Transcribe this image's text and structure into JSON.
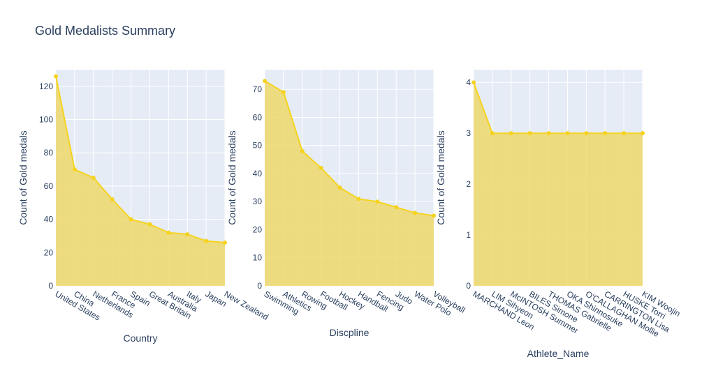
{
  "chart_title": "Gold Medalists Summary",
  "colors": {
    "plot_bg": "#e5ecf6",
    "grid": "#ffffff",
    "line": "#f5d31e",
    "fill": "#efd86b",
    "text": "#2a3f5f"
  },
  "chart_data": [
    {
      "type": "area",
      "title": "Gold Medalists Summary",
      "xlabel": "Country",
      "ylabel": "Count of Gold medals",
      "categories": [
        "United States",
        "China",
        "Netherlands",
        "France",
        "Spain",
        "Great Britain",
        "Australia",
        "Italy",
        "Japan",
        "New Zealand"
      ],
      "values": [
        126,
        70,
        65,
        52,
        40,
        37,
        32,
        31,
        27,
        26
      ],
      "ylim": [
        0,
        130
      ],
      "yticks": [
        0,
        20,
        40,
        60,
        80,
        100,
        120
      ],
      "grid": true
    },
    {
      "type": "area",
      "xlabel": "Discpline",
      "ylabel": "Count of Gold medals",
      "categories": [
        "Swimming",
        "Athletics",
        "Rowing",
        "Football",
        "Hockey",
        "Handball",
        "Fencing",
        "Judo",
        "Water Polo",
        "Volleyball"
      ],
      "values": [
        73,
        69,
        48,
        42,
        35,
        31,
        30,
        28,
        26,
        25
      ],
      "ylim": [
        0,
        77
      ],
      "yticks": [
        0,
        10,
        20,
        30,
        40,
        50,
        60,
        70
      ],
      "grid": true
    },
    {
      "type": "area",
      "xlabel": "Athlete_Name",
      "ylabel": "Count of Gold medals",
      "categories": [
        "MARCHAND Leon",
        "LIM Sihyeon",
        "McINTOSH Summer",
        "BILES Simone",
        "THOMAS Gabrielle",
        "OKA Shinnosuke",
        "O'CALLAGHAN Mollie",
        "CARRINGTON Lisa",
        "HUSKE Torri",
        "KIM Woojin"
      ],
      "values": [
        4,
        3,
        3,
        3,
        3,
        3,
        3,
        3,
        3,
        3
      ],
      "ylim": [
        0,
        4.25
      ],
      "yticks": [
        0,
        1,
        2,
        3,
        4
      ],
      "grid": true
    }
  ]
}
